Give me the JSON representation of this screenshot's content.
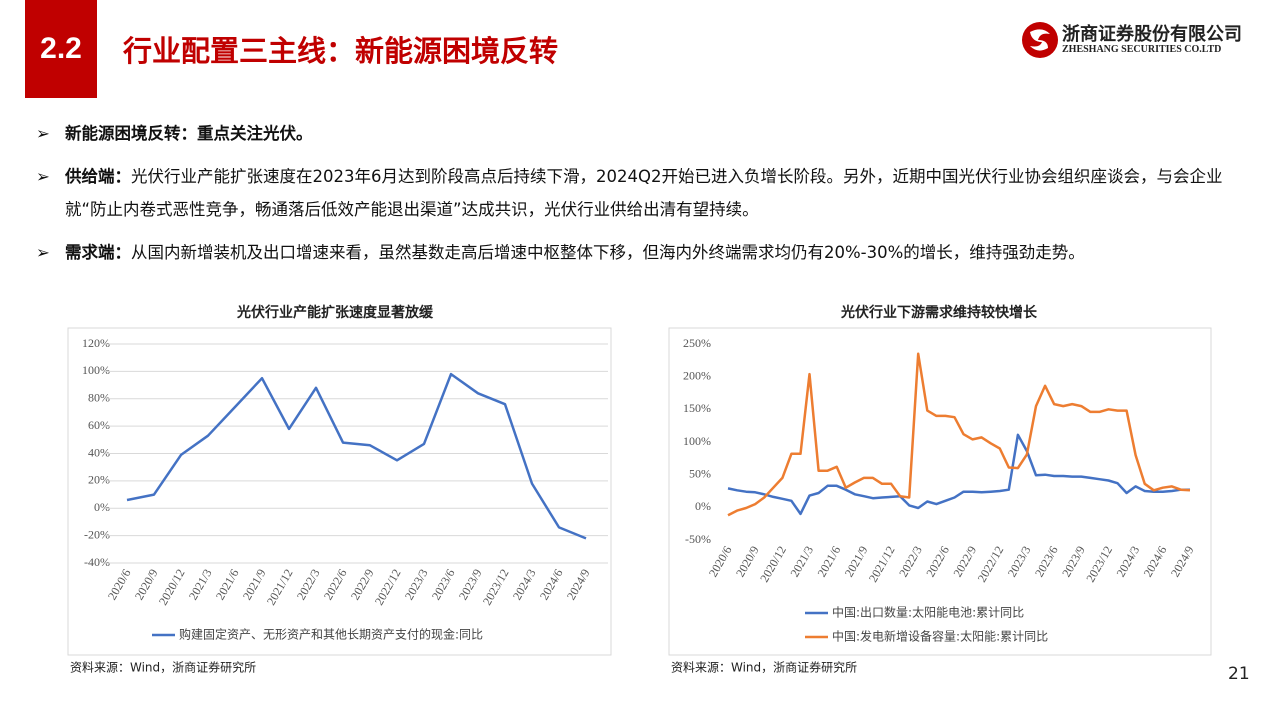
{
  "header": {
    "section": "2.2",
    "title": "行业配置三主线：新能源困境反转",
    "company": "浙商证券股份有限公司",
    "company_en": "ZHESHANG SECURITIES CO.LTD"
  },
  "bullets": [
    {
      "label": "新能源困境反转：重点关注光伏。"
    },
    {
      "label": "供给端：",
      "text": "光伏行业产能扩张速度在2023年6月达到阶段高点后持续下滑，2024Q2开始已进入负增长阶段。另外，近期中国光伏行业协会组织座谈会，与会企业就“防止内卷式恶性竞争，畅通落后低效产能退出渠道”达成共识，光伏行业供给出清有望持续。"
    },
    {
      "label": "需求端：",
      "text": "从国内新增装机及出口增速来看，虽然基数走高后增速中枢整体下移，但海内外终端需求均仍有20%-30%的增长，维持强劲走势。"
    }
  ],
  "chart_data": [
    {
      "type": "line",
      "title": "光伏行业产能扩张速度显著放缓",
      "categories": [
        "2020/6",
        "2020/9",
        "2020/12",
        "2021/3",
        "2021/6",
        "2021/9",
        "2021/12",
        "2022/3",
        "2022/6",
        "2022/9",
        "2022/12",
        "2023/3",
        "2023/6",
        "2023/9",
        "2023/12",
        "2024/3",
        "2024/6",
        "2024/9"
      ],
      "series": [
        {
          "name": "购建固定资产、无形资产和其他长期资产支付的现金:同比",
          "color": "#4472c4",
          "values": [
            6,
            10,
            39,
            53,
            74,
            95,
            58,
            88,
            48,
            46,
            35,
            47,
            98,
            84,
            76,
            18,
            -14,
            -22
          ]
        }
      ],
      "ylim": [
        -40,
        120
      ],
      "yticks": [
        {
          "value": -40,
          "label": "-40%"
        },
        {
          "value": -20,
          "label": "-20%"
        },
        {
          "value": 0,
          "label": "0%"
        },
        {
          "value": 20,
          "label": "20%"
        },
        {
          "value": 40,
          "label": "40%"
        },
        {
          "value": 60,
          "label": "60%"
        },
        {
          "value": 80,
          "label": "80%"
        },
        {
          "value": 100,
          "label": "100%"
        },
        {
          "value": 120,
          "label": "120%"
        }
      ],
      "grid": true,
      "source": "资料来源：Wind，浙商证券研究所"
    },
    {
      "type": "line",
      "title": "光伏行业下游需求维持较快增长",
      "categories": [
        "2020/6",
        null,
        null,
        "2020/9",
        null,
        null,
        "2020/12",
        null,
        null,
        "2021/3",
        null,
        null,
        "2021/6",
        null,
        null,
        "2021/9",
        null,
        null,
        "2021/12",
        null,
        null,
        "2022/3",
        null,
        null,
        "2022/6",
        null,
        null,
        "2022/9",
        null,
        null,
        "2022/12",
        null,
        null,
        "2023/3",
        null,
        null,
        "2023/6",
        null,
        null,
        "2023/9",
        null,
        null,
        "2023/12",
        null,
        null,
        "2024/3",
        null,
        null,
        "2024/6",
        null,
        null,
        "2024/9"
      ],
      "series": [
        {
          "name": "中国:出口数量:太阳能电池:累计同比",
          "color": "#4472c4",
          "values": [
            29,
            26,
            24,
            23,
            20,
            16,
            13,
            10,
            -10,
            18,
            22,
            33,
            33,
            27,
            20,
            17,
            14,
            15,
            16,
            17,
            3,
            -1,
            9,
            5,
            10,
            15,
            24,
            24,
            23,
            24,
            25,
            27,
            111,
            86,
            49,
            50,
            48,
            48,
            47,
            47,
            45,
            43,
            41,
            37,
            22,
            32,
            25,
            24,
            24,
            25,
            27,
            27
          ]
        },
        {
          "name": "中国:发电新增设备容量:太阳能:累计同比",
          "color": "#ed7d31",
          "values": [
            -12,
            -5,
            -1,
            5,
            15,
            30,
            45,
            82,
            82,
            204,
            56,
            56,
            62,
            30,
            38,
            45,
            45,
            36,
            36,
            17,
            15,
            235,
            148,
            140,
            140,
            138,
            112,
            104,
            107,
            98,
            90,
            61,
            60,
            81,
            155,
            186,
            158,
            155,
            158,
            155,
            146,
            146,
            150,
            148,
            148,
            80,
            36,
            26,
            30,
            32,
            27,
            26
          ]
        }
      ],
      "ylim": [
        -50,
        250
      ],
      "yticks": [
        {
          "value": -50,
          "label": "-50%"
        },
        {
          "value": 0,
          "label": "0%"
        },
        {
          "value": 50,
          "label": "50%"
        },
        {
          "value": 100,
          "label": "100%"
        },
        {
          "value": 150,
          "label": "150%"
        },
        {
          "value": 200,
          "label": "200%"
        },
        {
          "value": 250,
          "label": "250%"
        }
      ],
      "grid": false,
      "source": "资料来源：Wind，浙商证券研究所"
    }
  ],
  "page_number": "21"
}
